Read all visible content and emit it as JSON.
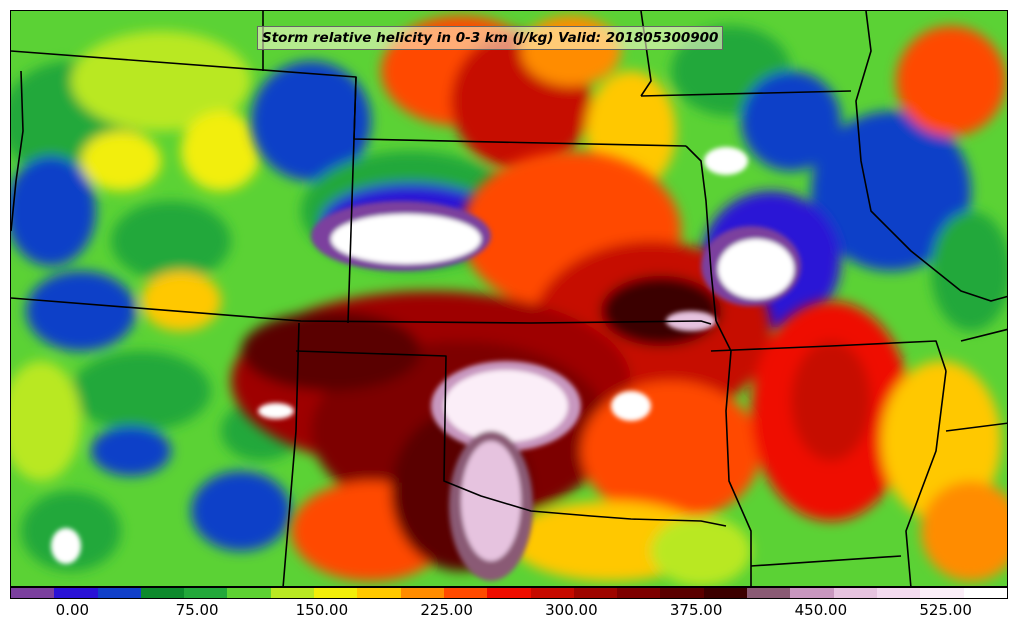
{
  "title": "Storm relative helicity in 0-3 km (J/kg) Valid: 201805300900",
  "colorbar": {
    "colors": [
      "#7b3f9e",
      "#2a12d6",
      "#1140c8",
      "#0d8a2c",
      "#22a83a",
      "#5dd232",
      "#b9e823",
      "#f2ee0a",
      "#ffc800",
      "#ff8c00",
      "#ff4a00",
      "#ef0d00",
      "#c60a00",
      "#9e0500",
      "#7d0000",
      "#5a0000",
      "#3b0000",
      "#8a5a74",
      "#c897bf",
      "#e6c3df",
      "#f3daef",
      "#fbeef8",
      "#ffffff"
    ],
    "tick_labels": [
      "0.00",
      "75.00",
      "150.00",
      "225.00",
      "300.00",
      "375.00",
      "450.00",
      "525.00"
    ],
    "tick_values": [
      0,
      75,
      150,
      225,
      300,
      375,
      450,
      525
    ],
    "range": [
      -37.5,
      562.5
    ]
  }
}
